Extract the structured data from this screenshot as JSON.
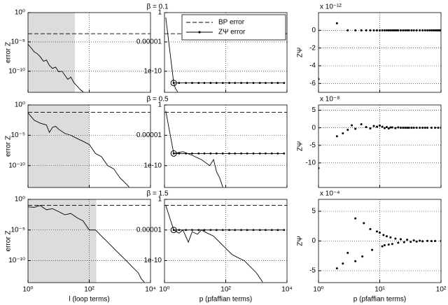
{
  "chart_data": [
    {
      "type": "line",
      "title": "β = 0.1",
      "ylabel": "error Z",
      "xlog": true,
      "ylog": true,
      "grid": true,
      "color": "#000000",
      "shade_color": "#dcdcdc",
      "shaded_xlim": [
        1,
        34
      ],
      "xlim": [
        1,
        10000
      ],
      "ylim": [
        2.5e-14,
        1
      ],
      "xticks": [
        1,
        100,
        10000
      ],
      "yticks": [
        {
          "value": 1,
          "label": "10⁰"
        },
        {
          "value": 1e-05,
          "label": "10⁻⁵"
        },
        {
          "value": 1e-10,
          "label": "10⁻¹⁰"
        }
      ],
      "series": [
        {
          "name": "BP error",
          "dash": true,
          "x": [
            1,
            10000
          ],
          "values": [
            0.00025,
            0.00025
          ]
        },
        {
          "x": [
            1,
            1.3,
            1.6,
            2,
            2.5,
            3.2,
            4,
            5,
            6.3,
            8,
            10,
            13,
            16,
            20,
            25,
            32,
            40,
            50,
            63
          ],
          "values": [
            4e-06,
            8e-07,
            2e-07,
            1e-07,
            3e-08,
            5e-09,
            8e-09,
            1e-09,
            3e-10,
            5e-10,
            8e-11,
            1e-10,
            2e-11,
            4e-12,
            1e-11,
            1e-12,
            3e-13,
            8e-14,
            3e-14
          ]
        }
      ]
    },
    {
      "type": "line",
      "xlog": true,
      "ylog": true,
      "grid": true,
      "color": "#000000",
      "legend": "upper right",
      "xlim": [
        1,
        10000
      ],
      "ylim": [
        2.5e-14,
        1
      ],
      "xticks": [
        1,
        100,
        10000
      ],
      "yticks": [
        1,
        1e-05,
        1e-10
      ],
      "series": [
        {
          "name": "BP error",
          "dash": true,
          "x": [
            1,
            10000
          ],
          "values": [
            0.00025,
            0.00025
          ]
        },
        {
          "name": "ZΨ error",
          "marker": "dot",
          "first_marker": "circle",
          "x": [
            2,
            3,
            5,
            8,
            13,
            20,
            32,
            50,
            80,
            130,
            200,
            320,
            500,
            800,
            1300,
            2000,
            3200,
            5000,
            8000
          ],
          "values": [
            1e-12,
            1e-12,
            1e-12,
            1e-12,
            1e-12,
            1e-12,
            1e-12,
            1e-12,
            1e-12,
            1e-12,
            1e-12,
            1e-12,
            1e-12,
            1e-12,
            1e-12,
            1e-12,
            1e-12,
            1e-12,
            1e-12
          ]
        },
        {
          "x": [
            1.1,
            2,
            2.3,
            2.7
          ],
          "values": [
            0.15,
            1e-12,
            1e-13,
            3e-14
          ]
        }
      ]
    },
    {
      "type": "scatter",
      "ylabel": "ZΨ",
      "y_multiplier": "x 10⁻¹²",
      "xlog": true,
      "grid": true,
      "color": "#000000",
      "xlim": [
        1,
        100
      ],
      "ylim": [
        -7,
        2
      ],
      "xticks": [
        1,
        10,
        100
      ],
      "yticks": [
        0,
        -2,
        -4,
        -6
      ],
      "series": [
        {
          "x": [
            1,
            2,
            3,
            4,
            5,
            6,
            7,
            8,
            9,
            10,
            11,
            12,
            13,
            14,
            15,
            16,
            17,
            18,
            19,
            20,
            22,
            24,
            26,
            28,
            30,
            33,
            36,
            40,
            45,
            50,
            55,
            60,
            65,
            70,
            75,
            80,
            85,
            90,
            95,
            100
          ],
          "values": [
            -5.5,
            0.8,
            0,
            0,
            0,
            0,
            0,
            0,
            0,
            0,
            0,
            0,
            0,
            0,
            0,
            0,
            0,
            0,
            0,
            0,
            0,
            0,
            0,
            0,
            0,
            0,
            0,
            0,
            0,
            0,
            0,
            0,
            0,
            0,
            0,
            0,
            0,
            0,
            0,
            0
          ]
        }
      ]
    },
    {
      "type": "line",
      "title": "β = 0.5",
      "ylabel": "error Z",
      "xlog": true,
      "ylog": true,
      "grid": true,
      "color": "#000000",
      "shade_color": "#dcdcdc",
      "shaded_xlim": [
        1,
        100
      ],
      "xlim": [
        1,
        10000
      ],
      "ylim": [
        2.5e-14,
        1
      ],
      "xticks": [
        1,
        100,
        10000
      ],
      "yticks": [
        {
          "value": 1,
          "label": "10⁰"
        },
        {
          "value": 1e-05,
          "label": "10⁻⁵"
        },
        {
          "value": 1e-10,
          "label": "10⁻¹⁰"
        }
      ],
      "series": [
        {
          "name": "BP error",
          "dash": true,
          "x": [
            1,
            10000
          ],
          "values": [
            0.06,
            0.06
          ]
        },
        {
          "x": [
            1,
            1.6,
            2.5,
            4,
            5,
            6.3,
            8,
            10,
            16,
            25,
            40,
            63,
            100,
            160,
            250,
            400,
            630,
            1000,
            1600,
            2000
          ],
          "values": [
            0.05,
            0.003,
            0.001,
            0.0005,
            3e-05,
            0.0002,
            0.0003,
            0.0001,
            2e-05,
            1e-05,
            3e-06,
            1e-06,
            3e-07,
            1e-08,
            3e-09,
            1e-10,
            3e-11,
            1e-12,
            1e-13,
            3e-14
          ]
        }
      ]
    },
    {
      "type": "line",
      "xlog": true,
      "ylog": true,
      "grid": true,
      "color": "#000000",
      "xlim": [
        1,
        10000
      ],
      "ylim": [
        2.5e-14,
        1
      ],
      "xticks": [
        1,
        100,
        10000
      ],
      "yticks": [
        1,
        1e-05,
        1e-10
      ],
      "series": [
        {
          "name": "BP error",
          "dash": true,
          "x": [
            1,
            10000
          ],
          "values": [
            0.06,
            0.06
          ]
        },
        {
          "name": "ZΨ error",
          "marker": "dot",
          "first_marker": "circle",
          "x": [
            2,
            3,
            5,
            8,
            13,
            20,
            32,
            50,
            80,
            130,
            200,
            320,
            500,
            800,
            1300,
            2000,
            3200,
            5000,
            8000
          ],
          "values": [
            1e-08,
            1e-08,
            1e-08,
            1e-08,
            1e-08,
            1e-08,
            1e-08,
            1e-08,
            1e-08,
            1e-08,
            1e-08,
            1e-08,
            1e-08,
            1e-08,
            1e-08,
            1e-08,
            1e-08,
            1e-08,
            1e-08
          ]
        },
        {
          "x": [
            1.1,
            2,
            4,
            8,
            16,
            30,
            40,
            50,
            63,
            80
          ],
          "values": [
            0.1,
            1e-08,
            2e-08,
            5e-09,
            1e-09,
            1e-10,
            1e-09,
            1e-11,
            1e-12,
            3e-14
          ]
        }
      ]
    },
    {
      "type": "scatter",
      "ylabel": "ZΨ",
      "y_multiplier": "x 10⁻⁸",
      "xlog": true,
      "grid": true,
      "color": "#000000",
      "xlim": [
        1,
        100
      ],
      "ylim": [
        -17,
        6.5
      ],
      "xticks": [
        1,
        10,
        100
      ],
      "yticks": [
        5,
        0,
        -5,
        -10
      ],
      "series": [
        {
          "x": [
            1,
            2,
            2.5,
            3,
            3.5,
            4,
            5,
            6,
            7,
            8,
            9,
            10,
            11,
            12,
            13,
            14,
            15,
            16,
            18,
            20,
            22,
            24,
            26,
            28,
            30,
            33,
            36,
            40,
            45,
            50,
            55,
            60,
            70,
            80,
            90,
            100
          ],
          "values": [
            -11.5,
            -2.4,
            -1.6,
            -0.6,
            0.7,
            -0.3,
            1.0,
            0.2,
            -0.2,
            0.5,
            0.3,
            0.6,
            0.3,
            -0.1,
            0.2,
            -0.2,
            0.1,
            0.1,
            -0.1,
            0.1,
            0,
            0,
            0,
            0,
            0,
            0,
            0,
            0,
            0,
            0,
            0,
            0,
            0,
            0,
            0,
            0
          ]
        }
      ]
    },
    {
      "type": "line",
      "title": "β = 1.5",
      "ylabel": "error Z",
      "xlabel": "l (loop terms)",
      "xlog": true,
      "ylog": true,
      "grid": true,
      "color": "#000000",
      "shade_color": "#dcdcdc",
      "shaded_xlim": [
        1,
        170
      ],
      "xlim": [
        1,
        10000
      ],
      "ylim": [
        2.5e-14,
        1
      ],
      "xticks": [
        {
          "value": 1,
          "label": "10⁰"
        },
        {
          "value": 100,
          "label": "10²"
        },
        {
          "value": 10000,
          "label": "10⁴"
        }
      ],
      "yticks": [
        {
          "value": 1,
          "label": "10⁰"
        },
        {
          "value": 1e-05,
          "label": "10⁻⁵"
        },
        {
          "value": 1e-10,
          "label": "10⁻¹⁰"
        }
      ],
      "series": [
        {
          "name": "BP error",
          "dash": true,
          "x": [
            1,
            10000
          ],
          "values": [
            0.11,
            0.11
          ]
        },
        {
          "x": [
            1,
            1.6,
            2.5,
            4,
            6.3,
            10,
            16,
            25,
            40,
            63,
            100,
            160,
            250,
            400,
            630,
            1000,
            1600,
            2500,
            4000,
            5000,
            6300
          ],
          "values": [
            0.06,
            0.05,
            0.1,
            0.02,
            0.03,
            0.01,
            0.003,
            0.005,
            0.001,
            0.0003,
            1e-05,
            1e-05,
            1e-06,
            1e-07,
            1e-08,
            1e-09,
            1e-10,
            1e-11,
            1e-12,
            1e-13,
            3e-14
          ]
        }
      ]
    },
    {
      "type": "line",
      "xlabel": "p (pfaffian terms)",
      "xlog": true,
      "ylog": true,
      "grid": true,
      "color": "#000000",
      "xlim": [
        1,
        10000
      ],
      "ylim": [
        2.5e-14,
        1
      ],
      "xticks": [
        {
          "value": 1,
          "label": "10⁰"
        },
        {
          "value": 100,
          "label": "10²"
        },
        {
          "value": 10000,
          "label": "10⁴"
        }
      ],
      "yticks": [
        1,
        1e-05,
        1e-10
      ],
      "series": [
        {
          "name": "BP error",
          "dash": true,
          "x": [
            1,
            10000
          ],
          "values": [
            0.11,
            0.11
          ]
        },
        {
          "name": "ZΨ error",
          "marker": "dot",
          "first_marker": "circle",
          "x": [
            2,
            3,
            5,
            8,
            13,
            20,
            32,
            50,
            80,
            130,
            200,
            320,
            500,
            800,
            1300,
            2000,
            3200,
            5000,
            8000
          ],
          "values": [
            1e-05,
            1e-05,
            1e-05,
            1e-05,
            1e-05,
            1e-05,
            1e-05,
            1e-05,
            1e-05,
            1e-05,
            1e-05,
            1e-05,
            1e-05,
            1e-05,
            1e-05,
            1e-05,
            1e-05,
            1e-05,
            1e-05
          ]
        },
        {
          "x": [
            1.1,
            2,
            3,
            4,
            6,
            8,
            12,
            16,
            25,
            40,
            63,
            100,
            160,
            250,
            400,
            630,
            1000,
            1600
          ],
          "values": [
            0.1,
            1e-05,
            3e-06,
            1e-05,
            1e-07,
            5e-06,
            2e-06,
            1e-05,
            3e-06,
            1e-06,
            1e-07,
            1e-08,
            1e-09,
            3e-10,
            1e-10,
            1e-11,
            1e-12,
            3e-14
          ]
        }
      ]
    },
    {
      "type": "scatter",
      "ylabel": "ZΨ",
      "y_multiplier": "x 10⁻⁴",
      "xlabel": "p (pfaffian terms)",
      "xlog": true,
      "grid": true,
      "color": "#000000",
      "xlim": [
        1,
        100
      ],
      "ylim": [
        -7,
        7
      ],
      "xticks": [
        {
          "value": 1,
          "label": "10⁰"
        },
        {
          "value": 10,
          "label": "10¹"
        },
        {
          "value": 100,
          "label": "10²"
        }
      ],
      "yticks": [
        5,
        0,
        -5
      ],
      "series": [
        {
          "x": [
            2,
            2.5,
            3,
            4,
            4,
            5.5,
            5.2,
            7,
            7.5,
            9,
            10,
            11,
            11.5,
            12,
            13,
            14,
            15,
            16,
            18,
            20,
            22,
            25,
            28,
            32,
            36,
            40,
            45,
            50,
            60,
            70,
            80,
            100
          ],
          "values": [
            -4.6,
            -3.8,
            -2.0,
            3.8,
            -3.4,
            3.0,
            -2.6,
            2.0,
            -1.5,
            1.6,
            1.4,
            -0.9,
            1.0,
            -0.7,
            0.8,
            -0.6,
            0.6,
            -0.5,
            0.4,
            -0.3,
            0.3,
            -0.2,
            0.2,
            -0.15,
            0.1,
            -0.1,
            0.05,
            -0.05,
            0.02,
            -0.02,
            0,
            0
          ]
        }
      ]
    }
  ]
}
